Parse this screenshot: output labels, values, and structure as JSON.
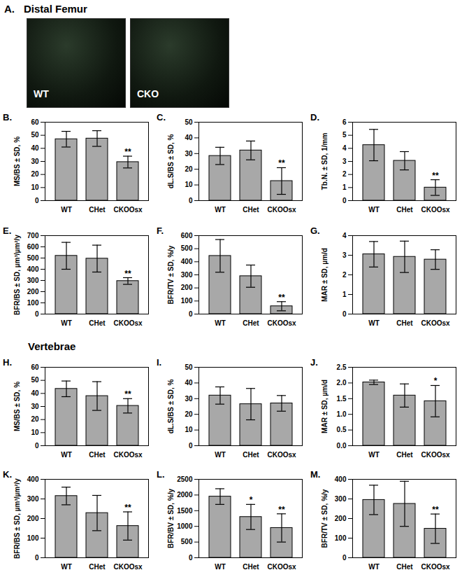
{
  "panel_a": {
    "label": "A.",
    "title": "Distal Femur",
    "images": [
      "WT",
      "CKO"
    ]
  },
  "vertebrae_title": "Vertebrae",
  "chart_data": [
    {
      "type": "bar",
      "title": "B.",
      "ylabel": "MS/BS ± SD, %",
      "categories": [
        "WT",
        "CHet",
        "CKOOsx"
      ],
      "values": [
        47,
        47.5,
        29.5
      ],
      "errors": [
        6,
        6,
        4.5
      ],
      "significance": [
        null,
        null,
        "**"
      ],
      "color": "#a8a8a8",
      "ylim": [
        0,
        60
      ],
      "yticks": [
        0,
        10,
        20,
        30,
        40,
        50,
        60
      ]
    },
    {
      "type": "bar",
      "title": "C.",
      "ylabel": "dL.S/BS ± SD, %",
      "categories": [
        "WT",
        "CHet",
        "CKOOsx"
      ],
      "values": [
        28.5,
        32,
        12.5
      ],
      "errors": [
        5.5,
        6,
        8.5
      ],
      "significance": [
        null,
        null,
        "**"
      ],
      "color": "#a8a8a8",
      "ylim": [
        0,
        50
      ],
      "yticks": [
        0,
        10,
        20,
        30,
        40,
        50
      ]
    },
    {
      "type": "bar",
      "title": "D.",
      "ylabel": "Tb.N. ± SD, 1/mm",
      "categories": [
        "WT",
        "CHet",
        "CKOOsx"
      ],
      "values": [
        4.25,
        3.05,
        1.0
      ],
      "errors": [
        1.2,
        0.7,
        0.6
      ],
      "significance": [
        null,
        null,
        "**"
      ],
      "color": "#a8a8a8",
      "ylim": [
        0,
        6
      ],
      "yticks": [
        0,
        1,
        2,
        3,
        4,
        5,
        6
      ]
    },
    {
      "type": "bar",
      "title": "E.",
      "ylabel": "BFR/BS ± SD, µm³/µm²/y",
      "categories": [
        "WT",
        "CHet",
        "CKOOsx"
      ],
      "values": [
        520,
        495,
        295
      ],
      "errors": [
        120,
        120,
        30
      ],
      "significance": [
        null,
        null,
        "**"
      ],
      "color": "#a8a8a8",
      "ylim": [
        0,
        700
      ],
      "yticks": [
        0,
        100,
        200,
        300,
        400,
        500,
        600,
        700
      ]
    },
    {
      "type": "bar",
      "title": "F.",
      "ylabel": "BFR/TV ± SD, %/y",
      "categories": [
        "WT",
        "CHet",
        "CKOOsx"
      ],
      "values": [
        445,
        290,
        60
      ],
      "errors": [
        125,
        85,
        35
      ],
      "significance": [
        null,
        null,
        "**"
      ],
      "color": "#a8a8a8",
      "ylim": [
        0,
        600
      ],
      "yticks": [
        0,
        100,
        200,
        300,
        400,
        500,
        600
      ]
    },
    {
      "type": "bar",
      "title": "G.",
      "ylabel": "MAR ± SD, µm/d",
      "categories": [
        "WT",
        "CHet",
        "CKOOsx"
      ],
      "values": [
        3.05,
        2.92,
        2.78
      ],
      "errors": [
        0.65,
        0.8,
        0.5
      ],
      "significance": [
        null,
        null,
        null
      ],
      "color": "#a8a8a8",
      "ylim": [
        0,
        4
      ],
      "yticks": [
        0,
        1,
        2,
        3,
        4
      ]
    },
    {
      "type": "bar",
      "title": "H.",
      "ylabel": "MS/BS ± SD, %",
      "categories": [
        "WT",
        "CHet",
        "CKOOsx"
      ],
      "values": [
        43.5,
        38,
        30.5
      ],
      "errors": [
        6,
        11,
        5.5
      ],
      "significance": [
        null,
        null,
        "**"
      ],
      "color": "#a8a8a8",
      "ylim": [
        0,
        60
      ],
      "yticks": [
        0,
        10,
        20,
        30,
        40,
        50,
        60
      ]
    },
    {
      "type": "bar",
      "title": "I.",
      "ylabel": "dL.S/BS ± SD, %",
      "categories": [
        "WT",
        "CHet",
        "CKOOsx"
      ],
      "values": [
        32,
        26.5,
        27
      ],
      "errors": [
        5.5,
        10,
        5
      ],
      "significance": [
        null,
        null,
        null
      ],
      "color": "#a8a8a8",
      "ylim": [
        0,
        50
      ],
      "yticks": [
        0,
        10,
        20,
        30,
        40,
        50
      ]
    },
    {
      "type": "bar",
      "title": "J.",
      "ylabel": "MAR ± SD, µm/d",
      "categories": [
        "WT",
        "CHet",
        "CKOOsx"
      ],
      "values": [
        2.02,
        1.6,
        1.42
      ],
      "errors": [
        0.07,
        0.37,
        0.5
      ],
      "significance": [
        null,
        null,
        "*"
      ],
      "color": "#a8a8a8",
      "ylim": [
        0,
        2.5
      ],
      "yticks": [
        {
          "value": 0,
          "label": "0.0"
        },
        {
          "value": 0.5,
          "label": "0.5"
        },
        {
          "value": 1,
          "label": "1.0"
        },
        {
          "value": 1.5,
          "label": "1.5"
        },
        {
          "value": 2,
          "label": "2.0"
        },
        {
          "value": 2.5,
          "label": "2.5"
        }
      ]
    },
    {
      "type": "bar",
      "title": "K.",
      "ylabel": "BFR/BS ± SD, µm³/µm²/y",
      "categories": [
        "WT",
        "CHet",
        "CKOOsx"
      ],
      "values": [
        315,
        228,
        162
      ],
      "errors": [
        45,
        90,
        72
      ],
      "significance": [
        null,
        null,
        "**"
      ],
      "color": "#a8a8a8",
      "ylim": [
        0,
        400
      ],
      "yticks": [
        0,
        100,
        200,
        300,
        400
      ]
    },
    {
      "type": "bar",
      "title": "L.",
      "ylabel": "BFR/BV ± SD, %/y",
      "categories": [
        "WT",
        "CHet",
        "CKOOsx"
      ],
      "values": [
        1950,
        1300,
        950
      ],
      "errors": [
        250,
        400,
        450
      ],
      "significance": [
        null,
        "*",
        "**"
      ],
      "color": "#a8a8a8",
      "ylim": [
        0,
        2500
      ],
      "yticks": [
        0,
        500,
        1000,
        1500,
        2000,
        2500
      ]
    },
    {
      "type": "bar",
      "title": "M.",
      "ylabel": "BFR/TV ± SD, %/y",
      "categories": [
        "WT",
        "CHet",
        "CKOOsx"
      ],
      "values": [
        295,
        275,
        148
      ],
      "errors": [
        75,
        115,
        75
      ],
      "significance": [
        null,
        null,
        "**"
      ],
      "color": "#a8a8a8",
      "ylim": [
        0,
        400
      ],
      "yticks": [
        0,
        100,
        200,
        300,
        400
      ]
    }
  ]
}
